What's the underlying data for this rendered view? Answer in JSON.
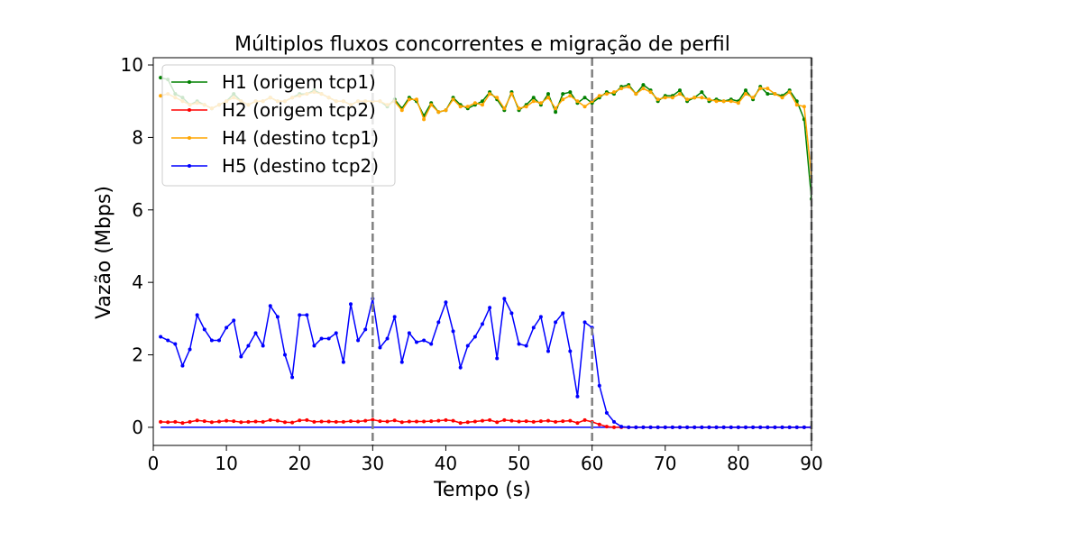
{
  "chart_data": {
    "type": "line",
    "title": "Múltiplos fluxos concorrentes e migração de perfil",
    "xlabel": "Tempo (s)",
    "ylabel": "Vazão (Mbps)",
    "xlim": [
      0,
      90
    ],
    "ylim": [
      -0.5,
      10.2
    ],
    "xticks": [
      0,
      10,
      20,
      30,
      40,
      50,
      60,
      70,
      80,
      90
    ],
    "yticks": [
      0,
      2,
      4,
      6,
      8,
      10
    ],
    "grid": false,
    "legend_position": "top-left",
    "vlines": [
      30,
      60,
      90
    ],
    "series": [
      {
        "name": "H1 (origem tcp1)",
        "color": "#008000",
        "x": [
          1,
          2,
          3,
          4,
          5,
          6,
          7,
          8,
          9,
          10,
          11,
          12,
          13,
          14,
          15,
          16,
          17,
          18,
          19,
          20,
          21,
          22,
          23,
          24,
          25,
          26,
          27,
          28,
          29,
          30,
          31,
          32,
          33,
          34,
          35,
          36,
          37,
          38,
          39,
          40,
          41,
          42,
          43,
          44,
          45,
          46,
          47,
          48,
          49,
          50,
          51,
          52,
          53,
          54,
          55,
          56,
          57,
          58,
          59,
          60,
          61,
          62,
          63,
          64,
          65,
          66,
          67,
          68,
          69,
          70,
          71,
          72,
          73,
          74,
          75,
          76,
          77,
          78,
          79,
          80,
          81,
          82,
          83,
          84,
          85,
          86,
          87,
          88,
          89,
          90
        ],
        "values": [
          9.65,
          9.6,
          9.2,
          9.1,
          8.9,
          9.0,
          8.9,
          8.8,
          8.9,
          9.0,
          9.2,
          9.0,
          8.9,
          9.0,
          9.0,
          9.1,
          9.0,
          9.0,
          9.1,
          9.2,
          9.2,
          9.3,
          9.2,
          9.1,
          9.0,
          9.0,
          8.9,
          9.0,
          9.0,
          9.0,
          9.0,
          8.85,
          9.05,
          8.8,
          9.1,
          9.0,
          8.6,
          8.95,
          8.7,
          8.75,
          9.1,
          8.9,
          8.8,
          8.9,
          9.0,
          9.25,
          9.05,
          8.75,
          9.25,
          8.75,
          8.9,
          9.1,
          8.9,
          9.2,
          8.7,
          9.2,
          9.25,
          8.95,
          9.1,
          8.95,
          9.1,
          9.25,
          9.2,
          9.4,
          9.45,
          9.2,
          9.45,
          9.3,
          9.0,
          9.15,
          9.15,
          9.3,
          9.0,
          9.1,
          9.25,
          9.0,
          9.05,
          9.0,
          9.05,
          9.0,
          9.3,
          9.05,
          9.4,
          9.2,
          9.2,
          9.15,
          9.3,
          9.0,
          8.5,
          6.3
        ]
      },
      {
        "name": "H2 (origem tcp2)",
        "color": "#ff0000",
        "x": [
          1,
          2,
          3,
          4,
          5,
          6,
          7,
          8,
          9,
          10,
          11,
          12,
          13,
          14,
          15,
          16,
          17,
          18,
          19,
          20,
          21,
          22,
          23,
          24,
          25,
          26,
          27,
          28,
          29,
          30,
          31,
          32,
          33,
          34,
          35,
          36,
          37,
          38,
          39,
          40,
          41,
          42,
          43,
          44,
          45,
          46,
          47,
          48,
          49,
          50,
          51,
          52,
          53,
          54,
          55,
          56,
          57,
          58,
          59,
          60,
          61,
          62,
          63,
          64,
          65,
          66,
          67,
          68,
          69,
          70,
          71,
          72,
          73,
          74,
          75,
          76,
          77,
          78,
          79,
          80,
          81,
          82,
          83,
          84,
          85,
          86,
          87,
          88,
          89,
          90
        ],
        "values": [
          0.15,
          0.14,
          0.15,
          0.12,
          0.15,
          0.19,
          0.17,
          0.14,
          0.16,
          0.18,
          0.17,
          0.14,
          0.15,
          0.16,
          0.15,
          0.2,
          0.18,
          0.14,
          0.13,
          0.19,
          0.2,
          0.15,
          0.16,
          0.16,
          0.15,
          0.15,
          0.17,
          0.16,
          0.18,
          0.21,
          0.17,
          0.16,
          0.19,
          0.14,
          0.16,
          0.16,
          0.16,
          0.17,
          0.18,
          0.2,
          0.18,
          0.12,
          0.14,
          0.16,
          0.18,
          0.2,
          0.14,
          0.2,
          0.18,
          0.16,
          0.17,
          0.15,
          0.17,
          0.18,
          0.15,
          0.17,
          0.18,
          0.12,
          0.2,
          0.15,
          0.08,
          0.02,
          0,
          0,
          0,
          0,
          0,
          0,
          0,
          0,
          0,
          0,
          0,
          0,
          0,
          0,
          0,
          0,
          0,
          0,
          0,
          0,
          0,
          0,
          0,
          0,
          0,
          0,
          0,
          0
        ]
      },
      {
        "name": "H4 (destino tcp1)",
        "color": "#ffa500",
        "x": [
          1,
          2,
          3,
          4,
          5,
          6,
          7,
          8,
          9,
          10,
          11,
          12,
          13,
          14,
          15,
          16,
          17,
          18,
          19,
          20,
          21,
          22,
          23,
          24,
          25,
          26,
          27,
          28,
          29,
          30,
          31,
          32,
          33,
          34,
          35,
          36,
          37,
          38,
          39,
          40,
          41,
          42,
          43,
          44,
          45,
          46,
          47,
          48,
          49,
          50,
          51,
          52,
          53,
          54,
          55,
          56,
          57,
          58,
          59,
          60,
          61,
          62,
          63,
          64,
          65,
          66,
          67,
          68,
          69,
          70,
          71,
          72,
          73,
          74,
          75,
          76,
          77,
          78,
          79,
          80,
          81,
          82,
          83,
          84,
          85,
          86,
          87,
          88,
          89,
          90
        ],
        "values": [
          9.15,
          9.2,
          9.1,
          9.0,
          8.9,
          8.95,
          8.9,
          8.8,
          8.9,
          9.0,
          9.1,
          9.0,
          8.9,
          9.0,
          9.0,
          9.1,
          9.0,
          9.0,
          9.1,
          9.15,
          9.2,
          9.25,
          9.2,
          9.1,
          9.0,
          9.0,
          8.9,
          9.0,
          9.0,
          9.0,
          9.0,
          8.9,
          9.0,
          8.75,
          9.05,
          9.05,
          8.5,
          8.9,
          8.7,
          8.75,
          9.05,
          8.85,
          8.85,
          8.95,
          8.9,
          9.2,
          9.1,
          8.8,
          9.2,
          8.8,
          8.85,
          9.0,
          8.95,
          9.1,
          8.8,
          9.05,
          9.15,
          9.0,
          8.85,
          9.0,
          9.15,
          9.2,
          9.25,
          9.35,
          9.4,
          9.2,
          9.35,
          9.25,
          9.05,
          9.1,
          9.1,
          9.2,
          9.05,
          9.1,
          9.1,
          9.05,
          9.0,
          9.0,
          9.0,
          8.95,
          9.2,
          9.1,
          9.35,
          9.35,
          9.2,
          9.1,
          9.25,
          8.9,
          8.85,
          6.9
        ]
      },
      {
        "name": "H5 (destino tcp2)",
        "color": "#0000ff",
        "x": [
          1,
          2,
          3,
          4,
          5,
          6,
          7,
          8,
          9,
          10,
          11,
          12,
          13,
          14,
          15,
          16,
          17,
          18,
          19,
          20,
          21,
          22,
          23,
          24,
          25,
          26,
          27,
          28,
          29,
          30,
          31,
          32,
          33,
          34,
          35,
          36,
          37,
          38,
          39,
          40,
          41,
          42,
          43,
          44,
          45,
          46,
          47,
          48,
          49,
          50,
          51,
          52,
          53,
          54,
          55,
          56,
          57,
          58,
          59,
          60,
          61,
          62,
          63,
          64,
          65,
          66,
          67,
          68,
          69,
          70,
          71,
          72,
          73,
          74,
          75,
          76,
          77,
          78,
          79,
          80,
          81,
          82,
          83,
          84,
          85,
          86,
          87,
          88,
          89,
          90
        ],
        "values": [
          2.5,
          2.4,
          2.3,
          1.7,
          2.15,
          3.1,
          2.7,
          2.4,
          2.4,
          2.75,
          2.95,
          1.95,
          2.25,
          2.6,
          2.25,
          3.35,
          3.05,
          2.0,
          1.38,
          3.1,
          3.1,
          2.25,
          2.45,
          2.45,
          2.6,
          1.8,
          3.4,
          2.4,
          2.7,
          3.55,
          2.2,
          2.45,
          3.05,
          1.8,
          2.6,
          2.35,
          2.4,
          2.3,
          2.9,
          3.45,
          2.65,
          1.65,
          2.25,
          2.5,
          2.85,
          3.3,
          1.9,
          3.55,
          3.15,
          2.3,
          2.25,
          2.75,
          3.05,
          2.1,
          2.9,
          3.15,
          2.1,
          0.85,
          2.9,
          2.75,
          1.15,
          0.4,
          0.15,
          0.02,
          0,
          0,
          0,
          0,
          0,
          0,
          0,
          0,
          0,
          0,
          0,
          0,
          0,
          0,
          0,
          0,
          0,
          0,
          0,
          0,
          0,
          0,
          0,
          0,
          0,
          0
        ]
      }
    ],
    "zero_line": {
      "color": "#0000ff",
      "x": [
        1,
        90
      ],
      "values": [
        0,
        0
      ]
    }
  }
}
